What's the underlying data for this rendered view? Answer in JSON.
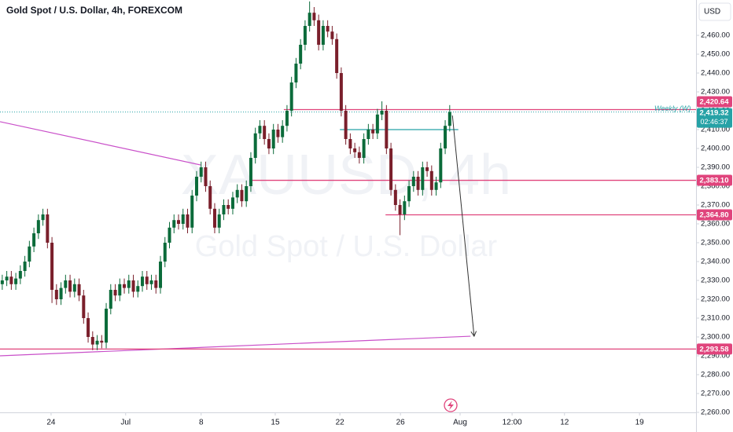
{
  "chart_data": {
    "type": "candlestick",
    "title": "Gold Spot / U.S. Dollar, 4h, FOREXCOM",
    "watermark": "XAUUSD, 4h",
    "watermark_subtitle": "Gold Spot / U.S. Dollar",
    "currency": "USD",
    "up_color": "#0b6b3a",
    "down_color": "#7a1f2b",
    "open": [
      2328,
      2330,
      2332,
      2328,
      2331,
      2335,
      2340,
      2348,
      2355,
      2362,
      2365,
      2350,
      2325,
      2320,
      2326,
      2330,
      2324,
      2328,
      2322,
      2310,
      2300,
      2296,
      2298,
      2297,
      2315,
      2325,
      2322,
      2328,
      2326,
      2330,
      2324,
      2327,
      2332,
      2328,
      2330,
      2326,
      2340,
      2350,
      2358,
      2362,
      2360,
      2365,
      2358,
      2375,
      2385,
      2390,
      2380,
      2368,
      2358,
      2365,
      2370,
      2368,
      2374,
      2378,
      2372,
      2380,
      2395,
      2408,
      2412,
      2405,
      2400,
      2410,
      2406,
      2412,
      2420,
      2435,
      2445,
      2455,
      2465,
      2472,
      2468,
      2455,
      2465,
      2462,
      2458,
      2440,
      2420,
      2405,
      2400,
      2398,
      2395,
      2405,
      2410,
      2408,
      2418,
      2420,
      2400,
      2378,
      2370,
      2365,
      2372,
      2380,
      2385,
      2378,
      2390,
      2388,
      2378,
      2382,
      2400,
      2412
    ],
    "high": [
      2333,
      2335,
      2335,
      2334,
      2338,
      2343,
      2351,
      2358,
      2365,
      2368,
      2368,
      2353,
      2328,
      2329,
      2333,
      2333,
      2331,
      2331,
      2325,
      2313,
      2303,
      2301,
      2301,
      2318,
      2328,
      2328,
      2331,
      2331,
      2333,
      2333,
      2330,
      2335,
      2335,
      2333,
      2333,
      2343,
      2353,
      2361,
      2365,
      2365,
      2368,
      2368,
      2378,
      2388,
      2393,
      2393,
      2383,
      2371,
      2368,
      2373,
      2373,
      2377,
      2381,
      2381,
      2383,
      2398,
      2411,
      2415,
      2415,
      2408,
      2413,
      2413,
      2415,
      2423,
      2438,
      2448,
      2458,
      2468,
      2478,
      2475,
      2471,
      2468,
      2468,
      2465,
      2461,
      2443,
      2423,
      2408,
      2403,
      2401,
      2408,
      2413,
      2413,
      2421,
      2425,
      2423,
      2403,
      2381,
      2373,
      2375,
      2383,
      2388,
      2388,
      2393,
      2393,
      2391,
      2385,
      2403,
      2415,
      2423
    ],
    "low": [
      2325,
      2327,
      2325,
      2325,
      2328,
      2332,
      2337,
      2345,
      2352,
      2359,
      2347,
      2318,
      2317,
      2317,
      2323,
      2321,
      2321,
      2319,
      2307,
      2297,
      2293,
      2293,
      2294,
      2294,
      2312,
      2319,
      2319,
      2323,
      2323,
      2321,
      2321,
      2324,
      2325,
      2325,
      2323,
      2323,
      2337,
      2347,
      2355,
      2357,
      2357,
      2355,
      2355,
      2372,
      2382,
      2377,
      2365,
      2355,
      2355,
      2362,
      2365,
      2365,
      2371,
      2369,
      2369,
      2377,
      2392,
      2405,
      2402,
      2397,
      2397,
      2403,
      2403,
      2409,
      2417,
      2432,
      2442,
      2452,
      2462,
      2465,
      2452,
      2452,
      2459,
      2455,
      2437,
      2417,
      2402,
      2397,
      2395,
      2392,
      2392,
      2402,
      2405,
      2405,
      2415,
      2397,
      2375,
      2367,
      2354,
      2362,
      2369,
      2377,
      2375,
      2375,
      2385,
      2375,
      2375,
      2379,
      2397,
      2409
    ],
    "close": [
      2330,
      2332,
      2328,
      2331,
      2335,
      2340,
      2348,
      2355,
      2362,
      2365,
      2350,
      2325,
      2320,
      2326,
      2330,
      2324,
      2328,
      2322,
      2310,
      2300,
      2296,
      2298,
      2297,
      2315,
      2325,
      2322,
      2328,
      2326,
      2330,
      2324,
      2327,
      2332,
      2328,
      2330,
      2326,
      2340,
      2350,
      2358,
      2362,
      2360,
      2365,
      2358,
      2375,
      2385,
      2390,
      2380,
      2368,
      2358,
      2365,
      2370,
      2368,
      2374,
      2378,
      2372,
      2380,
      2395,
      2408,
      2412,
      2405,
      2400,
      2410,
      2406,
      2412,
      2420,
      2435,
      2445,
      2455,
      2465,
      2472,
      2468,
      2455,
      2465,
      2462,
      2458,
      2440,
      2420,
      2405,
      2400,
      2398,
      2395,
      2405,
      2410,
      2408,
      2418,
      2420,
      2400,
      2378,
      2370,
      2365,
      2372,
      2380,
      2385,
      2378,
      2390,
      2388,
      2378,
      2382,
      2400,
      2412,
      2419.32
    ],
    "xlim": [
      -0.5,
      153.5
    ],
    "ylim": [
      2260,
      2478.75
    ],
    "xticks": [
      {
        "value": 10.8,
        "label": "24"
      },
      {
        "value": 27.3,
        "label": "Jul"
      },
      {
        "value": 44,
        "label": "8"
      },
      {
        "value": 60.4,
        "label": "15"
      },
      {
        "value": 74.7,
        "label": "22"
      },
      {
        "value": 88.1,
        "label": "26"
      },
      {
        "value": 101.3,
        "label": "Aug"
      },
      {
        "value": 112.8,
        "label": "12:00"
      },
      {
        "value": 124.4,
        "label": "12"
      },
      {
        "value": 141,
        "label": "19"
      }
    ],
    "yticks": [
      {
        "value": 2260,
        "label": "2,260.00"
      },
      {
        "value": 2270,
        "label": "2,270.00"
      },
      {
        "value": 2280,
        "label": "2,280.00"
      },
      {
        "value": 2290,
        "label": "2,290.00"
      },
      {
        "value": 2300,
        "label": "2,300.00"
      },
      {
        "value": 2310,
        "label": "2,310.00"
      },
      {
        "value": 2320,
        "label": "2,320.00"
      },
      {
        "value": 2330,
        "label": "2,330.00"
      },
      {
        "value": 2340,
        "label": "2,340.00"
      },
      {
        "value": 2350,
        "label": "2,350.00"
      },
      {
        "value": 2360,
        "label": "2,360.00"
      },
      {
        "value": 2370,
        "label": "2,370.00"
      },
      {
        "value": 2380,
        "label": "2,380.00"
      },
      {
        "value": 2390,
        "label": "2,390.00"
      },
      {
        "value": 2400,
        "label": "2,400.00"
      },
      {
        "value": 2410,
        "label": "2,410.00"
      },
      {
        "value": 2420,
        "label": "2,420.00"
      },
      {
        "value": 2430,
        "label": "2,430.00"
      },
      {
        "value": 2440,
        "label": "2,440.00"
      },
      {
        "value": 2450,
        "label": "2,450.00"
      },
      {
        "value": 2460,
        "label": "2,460.00"
      }
    ],
    "price_lines": [
      {
        "value": 2420.64,
        "label": "2,420.64",
        "color": "#e0447c",
        "from": 62.3,
        "note": "Weekly (W)"
      },
      {
        "value": 2383.1,
        "label": "2,383.10",
        "color": "#e0447c",
        "from": 55
      },
      {
        "value": 2364.8,
        "label": "2,364.80",
        "color": "#e0447c",
        "from": 84.8
      },
      {
        "value": 2293.58,
        "label": "2,293.58",
        "color": "#e0447c",
        "from": -0.5
      }
    ],
    "level_lines": [
      {
        "value": 2410,
        "color": "#26a2a6",
        "from": 74.7,
        "to": 100.9
      }
    ],
    "current_price": {
      "value": 2419.32,
      "label": "2,419.32",
      "countdown": "02:46:37",
      "color": "#26a2a6"
    },
    "trend_lines": [
      {
        "points": [
          [
            -0.5,
            2414.2
          ],
          [
            43.9,
            2391.25
          ]
        ],
        "color": "#c94fc9"
      },
      {
        "points": [
          [
            -0.5,
            2290
          ],
          [
            103.6,
            2300.4
          ]
        ],
        "color": "#c94fc9"
      }
    ],
    "arrow": {
      "points": [
        [
          99.6,
          2417.5
        ],
        [
          104.4,
          2300.4
        ]
      ],
      "color": "#333333"
    }
  }
}
